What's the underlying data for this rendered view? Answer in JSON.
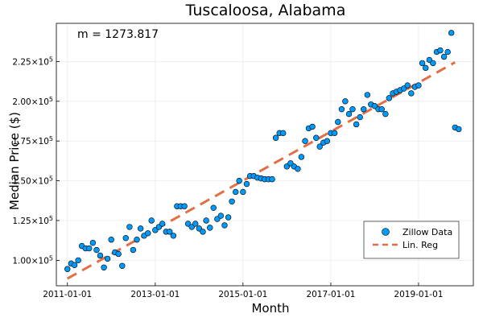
{
  "chart_data": {
    "type": "scatter",
    "title": "Tuscaloosa, Alabama",
    "xlabel": "Month",
    "ylabel": "Median Price ($)",
    "annotation": "m = 1273.817",
    "grid": true,
    "legend_position": "bottom-right",
    "xlim": [
      "2010-10-01",
      "2020-04-01"
    ],
    "ylim": [
      84000,
      249000
    ],
    "x_ticks": [
      {
        "value": "2011-01-01",
        "label": "2011-01-01"
      },
      {
        "value": "2013-01-01",
        "label": "2013-01-01"
      },
      {
        "value": "2015-01-01",
        "label": "2015-01-01"
      },
      {
        "value": "2017-01-01",
        "label": "2017-01-01"
      },
      {
        "value": "2019-01-01",
        "label": "2019-01-01"
      }
    ],
    "y_ticks": [
      {
        "value": 100000,
        "mantissa": "1.00×10",
        "exp": "5"
      },
      {
        "value": 125000,
        "mantissa": "1.25×10",
        "exp": "5"
      },
      {
        "value": 150000,
        "mantissa": "1.50×10",
        "exp": "5"
      },
      {
        "value": 175000,
        "mantissa": "1.75×10",
        "exp": "5"
      },
      {
        "value": 200000,
        "mantissa": "2.00×10",
        "exp": "5"
      },
      {
        "value": 225000,
        "mantissa": "2.25×10",
        "exp": "5"
      }
    ],
    "colors": {
      "scatter": "#009AFA",
      "line": "#E26F46",
      "grid": "#ebebeb"
    },
    "series": [
      {
        "name": "Zillow Data",
        "kind": "scatter",
        "x": [
          "2011-01-01",
          "2011-02-01",
          "2011-03-01",
          "2011-04-01",
          "2011-05-01",
          "2011-06-01",
          "2011-07-01",
          "2011-08-01",
          "2011-09-01",
          "2011-10-01",
          "2011-11-01",
          "2011-12-01",
          "2012-01-01",
          "2012-02-01",
          "2012-03-01",
          "2012-04-01",
          "2012-05-01",
          "2012-06-01",
          "2012-07-01",
          "2012-08-01",
          "2012-09-01",
          "2012-10-01",
          "2012-11-01",
          "2012-12-01",
          "2013-01-01",
          "2013-02-01",
          "2013-03-01",
          "2013-04-01",
          "2013-05-01",
          "2013-06-01",
          "2013-07-01",
          "2013-08-01",
          "2013-09-01",
          "2013-10-01",
          "2013-11-01",
          "2013-12-01",
          "2014-01-01",
          "2014-02-01",
          "2014-03-01",
          "2014-04-01",
          "2014-05-01",
          "2014-06-01",
          "2014-07-01",
          "2014-08-01",
          "2014-09-01",
          "2014-10-01",
          "2014-11-01",
          "2014-12-01",
          "2015-01-01",
          "2015-02-01",
          "2015-03-01",
          "2015-04-01",
          "2015-05-01",
          "2015-06-01",
          "2015-07-01",
          "2015-08-01",
          "2015-09-01",
          "2015-10-01",
          "2015-11-01",
          "2015-12-01",
          "2016-01-01",
          "2016-02-01",
          "2016-03-01",
          "2016-04-01",
          "2016-05-01",
          "2016-06-01",
          "2016-07-01",
          "2016-08-01",
          "2016-09-01",
          "2016-10-01",
          "2016-11-01",
          "2016-12-01",
          "2017-01-01",
          "2017-02-01",
          "2017-03-01",
          "2017-04-01",
          "2017-05-01",
          "2017-06-01",
          "2017-07-01",
          "2017-08-01",
          "2017-09-01",
          "2017-10-01",
          "2017-11-01",
          "2017-12-01",
          "2018-01-01",
          "2018-02-01",
          "2018-03-01",
          "2018-04-01",
          "2018-05-01",
          "2018-06-01",
          "2018-07-01",
          "2018-08-01",
          "2018-09-01",
          "2018-10-01",
          "2018-11-01",
          "2018-12-01",
          "2019-01-01",
          "2019-02-01",
          "2019-03-01",
          "2019-04-01",
          "2019-05-01",
          "2019-06-01",
          "2019-07-01",
          "2019-08-01",
          "2019-09-01",
          "2019-10-01",
          "2019-11-01",
          "2019-12-01"
        ],
        "y": [
          94500,
          98000,
          97000,
          100000,
          109000,
          107500,
          107500,
          111000,
          106500,
          103000,
          95500,
          101000,
          113000,
          105000,
          104000,
          96500,
          114000,
          121000,
          106500,
          113000,
          120000,
          115500,
          117000,
          125000,
          119000,
          121000,
          123000,
          118000,
          118000,
          115500,
          134000,
          134000,
          134000,
          123000,
          121000,
          123000,
          120000,
          118000,
          125000,
          120500,
          133000,
          126000,
          128000,
          122000,
          127000,
          137000,
          143000,
          150000,
          143000,
          148000,
          153000,
          153000,
          152000,
          151500,
          151000,
          151000,
          151000,
          177000,
          180000,
          180000,
          159000,
          161000,
          159000,
          157500,
          165000,
          175000,
          183000,
          184000,
          177000,
          171500,
          174000,
          175000,
          180000,
          180000,
          187000,
          195000,
          200000,
          192000,
          195000,
          185500,
          190000,
          195000,
          204000,
          198000,
          197000,
          195000,
          195000,
          192000,
          202000,
          205000,
          206000,
          207000,
          208000,
          210000,
          205000,
          209000,
          210000,
          224000,
          221000,
          226000,
          224000,
          231000,
          232000,
          228000,
          231000,
          243000,
          183500,
          182500
        ],
        "y_note_unused": false
      },
      {
        "name": "Lin. Reg",
        "kind": "line",
        "x": [
          "2011-01-01",
          "2019-11-01"
        ],
        "y": [
          88500,
          224500
        ]
      }
    ]
  }
}
